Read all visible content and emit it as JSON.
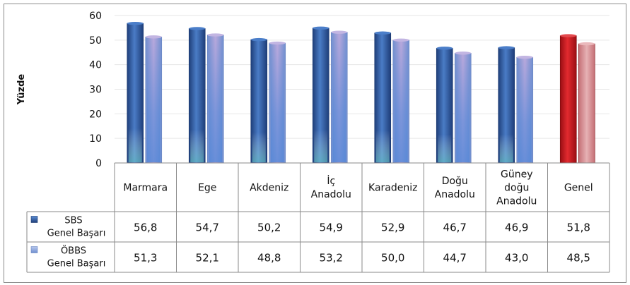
{
  "chart_data": {
    "type": "bar",
    "title": "",
    "xlabel": "",
    "ylabel": "Yüzde",
    "ylim": [
      0,
      60
    ],
    "yticks": [
      0,
      10,
      20,
      30,
      40,
      50,
      60
    ],
    "grid": true,
    "legend_placement": "data-table-left",
    "categories": [
      [
        "Marmara"
      ],
      [
        "Ege"
      ],
      [
        "Akdeniz"
      ],
      [
        "İç",
        "Anadolu"
      ],
      [
        "Karadeniz"
      ],
      [
        "Doğu",
        "Anadolu"
      ],
      [
        "Güney",
        "doğu",
        "Anadolu"
      ],
      [
        "Genel"
      ]
    ],
    "series": [
      {
        "name": [
          "SBS",
          "Genel Başarı"
        ],
        "values": [
          56.8,
          54.7,
          50.2,
          54.9,
          52.9,
          46.7,
          46.9,
          51.8
        ],
        "labels": [
          "56,8",
          "54,7",
          "50,2",
          "54,9",
          "52,9",
          "46,7",
          "46,9",
          "51,8"
        ],
        "color": "#2f5fa6",
        "highlight_color": "#c0181e"
      },
      {
        "name": [
          "ÖBBS",
          "Genel Başarı"
        ],
        "values": [
          51.3,
          52.1,
          48.8,
          53.2,
          50.0,
          44.7,
          43.0,
          48.5
        ],
        "labels": [
          "51,3",
          "52,1",
          "48,8",
          "53,2",
          "50,0",
          "44,7",
          "43,0",
          "48,5"
        ],
        "color": "#8fa6d8",
        "highlight_color": "#d58e92"
      }
    ]
  }
}
